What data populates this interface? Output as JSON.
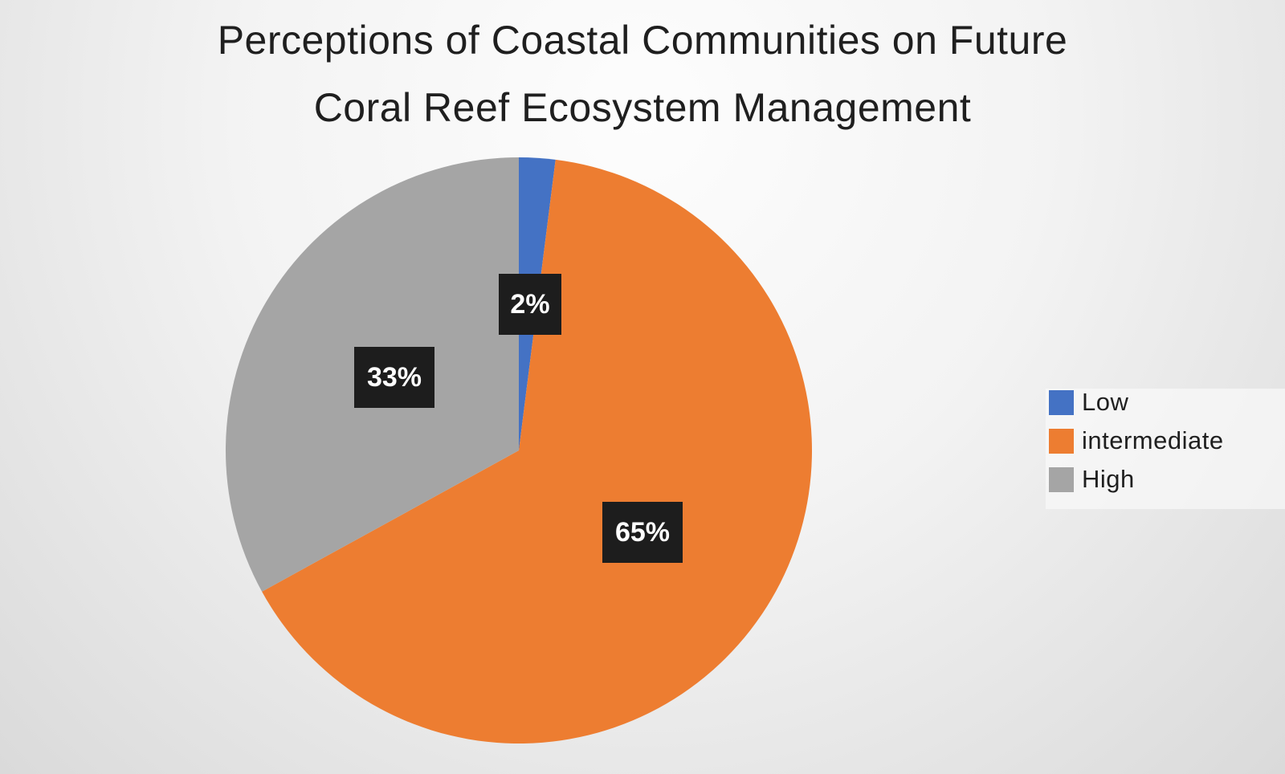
{
  "chart_data": {
    "type": "pie",
    "title": "Perceptions of Coastal Communities on Future Coral Reef Ecosystem Management",
    "title_lines": [
      "Perceptions of Coastal Communities on Future",
      "Coral Reef Ecosystem Management"
    ],
    "categories": [
      "Low",
      "intermediate",
      "High"
    ],
    "values": [
      2,
      65,
      33
    ],
    "data_labels": [
      "2%",
      "65%",
      "33%"
    ],
    "colors": [
      "#4472c4",
      "#ed7d31",
      "#a5a5a5"
    ],
    "legend_position": "right"
  }
}
